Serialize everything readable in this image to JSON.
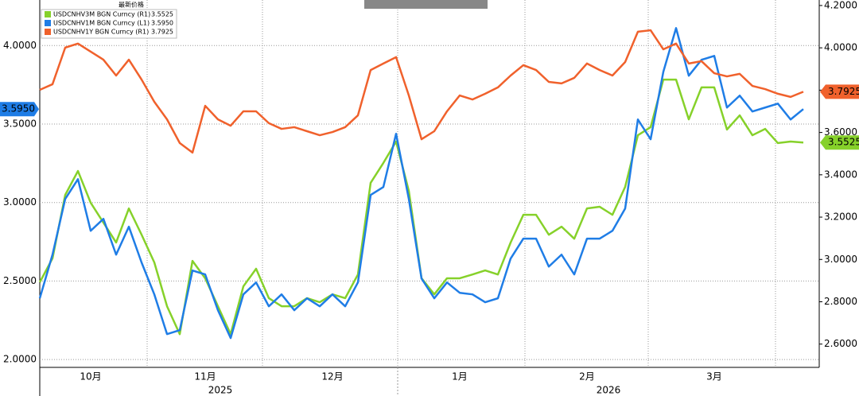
{
  "header": "最新价格",
  "chart_data": {
    "type": "line",
    "categories": [
      null,
      null,
      null,
      null,
      "10月",
      null,
      null,
      null,
      null,
      null,
      null,
      null,
      null,
      "11月",
      null,
      null,
      null,
      null,
      null,
      null,
      null,
      null,
      null,
      "12月",
      null,
      null,
      null,
      null,
      null,
      null,
      null,
      null,
      null,
      "1月",
      null,
      null,
      null,
      null,
      null,
      null,
      null,
      null,
      null,
      "2月",
      null,
      null,
      null,
      null,
      null,
      null,
      null,
      null,
      null,
      "3月",
      null,
      null,
      null,
      null,
      null,
      null,
      null
    ],
    "years": [
      "2025",
      "2026"
    ],
    "ylim": [
      1.95,
      4.29
    ],
    "yticks": [
      {
        "value": 2,
        "label": "2.0000"
      },
      {
        "value": 2.5,
        "label": "2.5000"
      },
      {
        "value": 3,
        "label": "3.0000"
      },
      {
        "value": 3.5,
        "label": "3.5000"
      },
      {
        "value": 4,
        "label": "4.0000"
      }
    ],
    "y2lim": [
      2.49,
      4.226
    ],
    "y2ticks": [
      {
        "value": 2.6,
        "label": "2.6000"
      },
      {
        "value": 2.8,
        "label": "2.8000"
      },
      {
        "value": 3,
        "label": "3.0000"
      },
      {
        "value": 3.2,
        "label": "3.2000"
      },
      {
        "value": 3.4,
        "label": "3.4000"
      },
      {
        "value": 3.6,
        "label": "3.6000"
      },
      {
        "value": 3.8,
        "label": "3.8000"
      },
      {
        "value": 4,
        "label": "4.0000"
      },
      {
        "value": 4.2,
        "label": "4.2000"
      }
    ],
    "grid": true,
    "legend": "upper left",
    "series": [
      {
        "name": "USDCNHV3M BGN Curncy (R1)",
        "color": "#86d12a",
        "axis": "y2",
        "last_value_label": "3.5525",
        "values": [
          2.892,
          3.005,
          3.305,
          3.418,
          3.268,
          3.174,
          3.08,
          3.241,
          3.117,
          2.986,
          2.779,
          2.647,
          2.993,
          2.911,
          2.779,
          2.647,
          2.873,
          2.956,
          2.817,
          2.779,
          2.779,
          2.817,
          2.798,
          2.835,
          2.817,
          2.929,
          3.362,
          3.456,
          3.557,
          3.324,
          2.911,
          2.835,
          2.911,
          2.911,
          2.929,
          2.948,
          2.929,
          3.08,
          3.211,
          3.211,
          3.117,
          3.155,
          3.098,
          3.241,
          3.249,
          3.211,
          3.343,
          3.587,
          3.625,
          3.85,
          3.85,
          3.662,
          3.813,
          3.813,
          3.614,
          3.681,
          3.587,
          3.617,
          3.55,
          3.557,
          3.5525
        ]
      },
      {
        "name": "USDCNHV1M BGN Curncy (L1)",
        "color": "#1f7de6",
        "axis": "y",
        "last_value_label": "3.5950",
        "values": [
          2.39,
          2.668,
          3.023,
          3.149,
          2.82,
          2.896,
          2.668,
          2.846,
          2.618,
          2.415,
          2.162,
          2.187,
          2.567,
          2.542,
          2.314,
          2.137,
          2.415,
          2.491,
          2.339,
          2.415,
          2.314,
          2.39,
          2.339,
          2.415,
          2.339,
          2.491,
          3.048,
          3.099,
          3.438,
          3.023,
          2.516,
          2.39,
          2.491,
          2.425,
          2.415,
          2.365,
          2.39,
          2.643,
          2.77,
          2.77,
          2.592,
          2.668,
          2.542,
          2.77,
          2.77,
          2.82,
          2.962,
          3.529,
          3.403,
          3.833,
          4.111,
          3.808,
          3.909,
          3.934,
          3.605,
          3.681,
          3.58,
          3.605,
          3.63,
          3.529,
          3.595
        ]
      },
      {
        "name": "USDCNHV1Y BGN Curncy (R1)",
        "color": "#f0612c",
        "axis": "y2",
        "last_value_label": "3.7925",
        "values": [
          3.8015,
          3.828,
          4.001,
          4.02,
          3.982,
          3.944,
          3.869,
          3.944,
          3.85,
          3.745,
          3.662,
          3.55,
          3.505,
          3.726,
          3.662,
          3.632,
          3.7,
          3.7,
          3.644,
          3.617,
          3.625,
          3.606,
          3.587,
          3.602,
          3.625,
          3.681,
          3.895,
          3.926,
          3.956,
          3.775,
          3.568,
          3.606,
          3.7,
          3.775,
          3.756,
          3.783,
          3.813,
          3.869,
          3.918,
          3.895,
          3.839,
          3.832,
          3.858,
          3.926,
          3.895,
          3.869,
          3.933,
          4.076,
          4.083,
          3.993,
          4.02,
          3.926,
          3.937,
          3.88,
          3.865,
          3.877,
          3.82,
          3.805,
          3.783,
          3.768,
          3.7925
        ]
      }
    ]
  }
}
